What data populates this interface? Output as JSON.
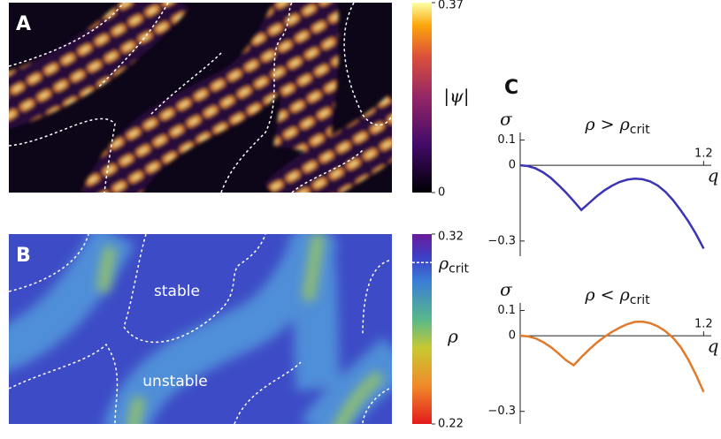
{
  "panels": [
    "A",
    "B",
    "C"
  ],
  "annotations": [
    "stable",
    "unstable"
  ],
  "colorbars": [
    {
      "label": "|ψ|",
      "lim": [
        0,
        0.37
      ],
      "ticks": [
        0.37,
        0
      ]
    },
    {
      "label": "ρ",
      "lim": [
        0.22,
        0.32
      ],
      "ticks": [
        0.32,
        0.22
      ],
      "marker": 0.305,
      "marker_symbol": "ρ",
      "marker_subscript": "crit"
    }
  ],
  "chart_data": [
    {
      "type": "line",
      "title": "ρ > ρ",
      "title_subscript": "crit",
      "xlabel": "q",
      "ylabel": "σ",
      "x": [
        0,
        0.05,
        0.1,
        0.15,
        0.2,
        0.25,
        0.3,
        0.35,
        0.4,
        0.45,
        0.5,
        0.55,
        0.6,
        0.65,
        0.7,
        0.75,
        0.8,
        0.85,
        0.9,
        0.95,
        1.0,
        1.05,
        1.1,
        1.15,
        1.2
      ],
      "values": [
        0,
        -0.003,
        -0.012,
        -0.028,
        -0.05,
        -0.078,
        -0.108,
        -0.142,
        -0.177,
        -0.15,
        -0.123,
        -0.1,
        -0.081,
        -0.066,
        -0.057,
        -0.053,
        -0.055,
        -0.064,
        -0.08,
        -0.105,
        -0.138,
        -0.178,
        -0.222,
        -0.272,
        -0.33
      ],
      "color": "#3b35b5",
      "xlim": [
        0,
        1.25
      ],
      "xticks": [
        1.2
      ],
      "ylim": [
        -0.36,
        0.13
      ],
      "yticks": [
        0.1,
        0,
        {
          "value": -0.3,
          "label": "−0.3"
        }
      ]
    },
    {
      "type": "line",
      "title": "ρ < ρ",
      "title_subscript": "crit",
      "xlabel": "q",
      "ylabel": "σ",
      "x": [
        0,
        0.05,
        0.1,
        0.15,
        0.2,
        0.25,
        0.3,
        0.35,
        0.4,
        0.45,
        0.5,
        0.55,
        0.6,
        0.65,
        0.7,
        0.75,
        0.8,
        0.85,
        0.9,
        0.95,
        1.0,
        1.05,
        1.1,
        1.15,
        1.2
      ],
      "values": [
        0,
        -0.002,
        -0.01,
        -0.025,
        -0.045,
        -0.07,
        -0.097,
        -0.117,
        -0.085,
        -0.055,
        -0.028,
        -0.005,
        0.015,
        0.032,
        0.046,
        0.055,
        0.056,
        0.05,
        0.037,
        0.018,
        -0.008,
        -0.045,
        -0.095,
        -0.155,
        -0.223
      ],
      "color": "#e07a2c",
      "xlim": [
        0,
        1.25
      ],
      "xticks": [
        1.2
      ],
      "ylim": [
        -0.35,
        0.13
      ],
      "yticks": [
        0.1,
        0,
        {
          "value": -0.3,
          "label": "−0.3"
        }
      ]
    }
  ]
}
